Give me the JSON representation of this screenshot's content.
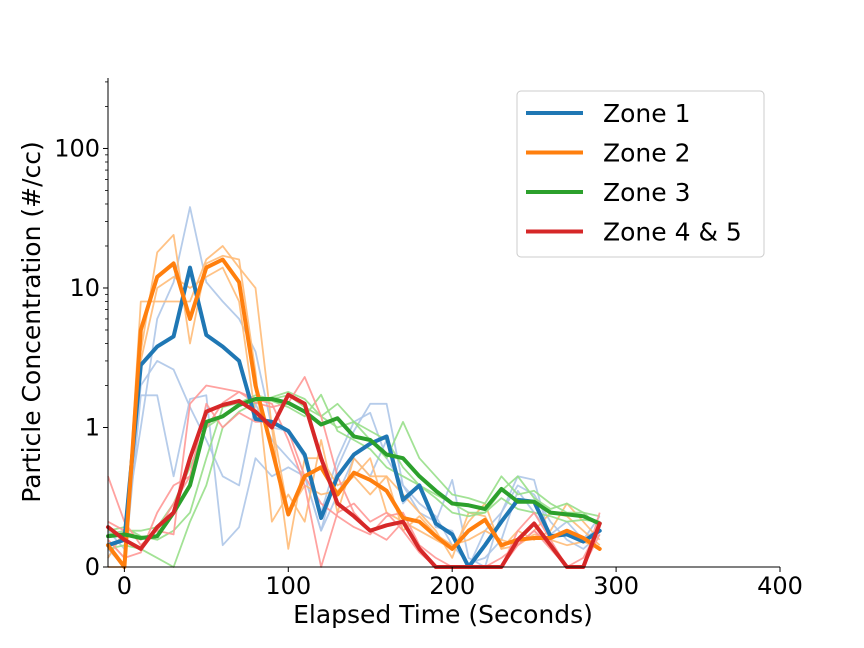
{
  "chart_data": {
    "type": "line",
    "title": "",
    "xlabel": "Elapsed Time (Seconds)",
    "ylabel": "Particle Concentration (#/cc)",
    "xlim": [
      -10,
      400
    ],
    "x_ticks": [
      0,
      100,
      200,
      300,
      400
    ],
    "y_scale": "symlog",
    "y_ticks": [
      0,
      1,
      10,
      100
    ],
    "y_tick_labels": [
      "0",
      "1",
      "10",
      "100"
    ],
    "ylim": [
      0,
      320
    ],
    "grid": false,
    "legend_position": "top-right",
    "series": [
      {
        "name": "Zone 1",
        "color": "#1f77b4",
        "light_color": "#aec7e8",
        "x": [
          -10,
          0,
          10,
          20,
          30,
          40,
          50,
          60,
          70,
          80,
          90,
          100,
          110,
          120,
          130,
          140,
          150,
          160,
          170,
          180,
          190,
          200,
          210,
          220,
          230,
          240,
          250,
          260,
          270,
          280,
          290
        ],
        "y": [
          0.12,
          0.15,
          2.8,
          3.8,
          4.5,
          14,
          4.6,
          3.8,
          3.0,
          1.15,
          0.8,
          0.75,
          0.62,
          0.27,
          0.5,
          0.62,
          0.68,
          0.72,
          0.37,
          0.45,
          0.24,
          0.18,
          0.0,
          0.12,
          0.25,
          0.37,
          0.36,
          0.17,
          0.18,
          0.14,
          0.2
        ],
        "replicates": [
          [
            0.1,
            0.0,
            1.7,
            1.7,
            0.5,
            1.6,
            1.7,
            0.12,
            0.22,
            0.6,
            0.5,
            0.55,
            0.5,
            0.2,
            0.55,
            0.75,
            0.9,
            0.9,
            0.45,
            0.3,
            0.25,
            0.48,
            0.05,
            0.0,
            0.3,
            0.5,
            0.48,
            0.15,
            0.2,
            0.15,
            0.22
          ],
          [
            0.05,
            0.2,
            1.0,
            6.0,
            11.0,
            38,
            11.0,
            8.0,
            6.0,
            3.5,
            1.0,
            0.75,
            0.6,
            0.3,
            0.6,
            0.8,
            0.85,
            0.6,
            0.45,
            0.35,
            0.28,
            0.12,
            0.02,
            0.05,
            0.15,
            0.42,
            0.3,
            0.18,
            0.25,
            0.15,
            0.28
          ],
          [
            0.2,
            0.1,
            2.0,
            3.0,
            2.6,
            1.4,
            0.7,
            0.5,
            0.45,
            0.9,
            0.7,
            0.6,
            0.5,
            0.2,
            0.4,
            0.6,
            0.5,
            0.7,
            0.35,
            0.45,
            0.22,
            0.2,
            0.0,
            0.2,
            0.3,
            0.45,
            0.4,
            0.25,
            0.15,
            0.1,
            0.18
          ]
        ]
      },
      {
        "name": "Zone 2",
        "color": "#ff7f0e",
        "light_color": "#ffbb78",
        "x": [
          -10,
          0,
          10,
          20,
          30,
          40,
          50,
          60,
          70,
          80,
          90,
          100,
          110,
          120,
          130,
          140,
          150,
          160,
          170,
          180,
          190,
          200,
          210,
          220,
          230,
          240,
          250,
          260,
          270,
          280,
          290
        ],
        "y": [
          0.12,
          0.0,
          5.0,
          12.0,
          15.0,
          6.0,
          14.0,
          16.0,
          11.0,
          2.0,
          0.65,
          0.29,
          0.5,
          0.55,
          0.4,
          0.52,
          0.48,
          0.42,
          0.27,
          0.25,
          0.17,
          0.1,
          0.2,
          0.26,
          0.12,
          0.15,
          0.16,
          0.16,
          0.2,
          0.16,
          0.1
        ],
        "replicates": [
          [
            0.0,
            0.0,
            8.0,
            8.0,
            8.0,
            8.0,
            16.0,
            20.0,
            14.0,
            10.0,
            1.0,
            0.1,
            0.6,
            0.6,
            0.45,
            0.5,
            0.6,
            0.3,
            0.25,
            0.2,
            0.15,
            0.1,
            0.25,
            0.35,
            0.1,
            0.12,
            0.2,
            0.3,
            0.28,
            0.2,
            0.12
          ],
          [
            0.05,
            0.2,
            3.5,
            18.0,
            24.0,
            4.0,
            15.0,
            17.0,
            16.0,
            2.5,
            0.25,
            0.4,
            0.25,
            0.7,
            0.3,
            0.6,
            0.5,
            0.5,
            0.4,
            0.3,
            0.2,
            0.05,
            0.3,
            0.28,
            0.1,
            0.2,
            0.15,
            0.2,
            0.35,
            0.25,
            0.15
          ],
          [
            0.15,
            0.05,
            3.0,
            10.0,
            12.0,
            10.0,
            12.0,
            14.0,
            8.0,
            1.2,
            0.8,
            0.3,
            0.45,
            0.4,
            0.42,
            0.5,
            0.4,
            0.5,
            0.2,
            0.28,
            0.18,
            0.12,
            0.15,
            0.2,
            0.15,
            0.12,
            0.18,
            0.15,
            0.12,
            0.14,
            0.1
          ]
        ]
      },
      {
        "name": "Zone 3",
        "color": "#2ca02c",
        "light_color": "#98df8a",
        "x": [
          -10,
          0,
          10,
          20,
          30,
          40,
          50,
          60,
          70,
          80,
          90,
          100,
          110,
          120,
          130,
          140,
          150,
          160,
          170,
          180,
          190,
          200,
          210,
          220,
          230,
          240,
          250,
          260,
          270,
          280,
          290
        ],
        "y": [
          0.17,
          0.18,
          0.16,
          0.17,
          0.3,
          0.45,
          0.8,
          1.2,
          1.45,
          1.6,
          1.6,
          1.5,
          1.3,
          1.05,
          0.82,
          0.72,
          0.7,
          0.62,
          0.6,
          0.5,
          0.42,
          0.35,
          0.34,
          0.32,
          0.43,
          0.36,
          0.36,
          0.3,
          0.29,
          0.28,
          0.24
        ],
        "replicates": [
          [
            0.2,
            0.22,
            0.17,
            0.15,
            0.2,
            0.3,
            0.6,
            1.4,
            1.5,
            1.7,
            1.6,
            1.7,
            1.4,
            1.2,
            0.9,
            0.8,
            0.7,
            0.6,
            0.8,
            0.6,
            0.5,
            0.4,
            0.38,
            0.35,
            0.5,
            0.4,
            0.42,
            0.35,
            0.3,
            0.3,
            0.28
          ],
          [
            0.1,
            0.12,
            0.1,
            0.05,
            0.0,
            0.25,
            0.45,
            1.0,
            1.3,
            1.5,
            1.65,
            1.8,
            1.6,
            1.2,
            1.0,
            0.8,
            0.75,
            0.7,
            0.55,
            0.45,
            0.38,
            0.3,
            0.28,
            0.3,
            0.42,
            0.5,
            0.38,
            0.32,
            0.35,
            0.3,
            0.22
          ],
          [
            0.18,
            0.2,
            0.2,
            0.22,
            0.35,
            0.55,
            1.0,
            1.2,
            1.5,
            1.55,
            1.55,
            1.4,
            1.2,
            0.95,
            0.75,
            0.7,
            0.65,
            0.55,
            0.5,
            0.45,
            0.4,
            0.35,
            0.3,
            0.3,
            0.38,
            0.32,
            0.3,
            0.28,
            0.25,
            0.26,
            0.25
          ]
        ]
      },
      {
        "name": "Zone 4 & 5",
        "color": "#d62728",
        "light_color": "#ff9896",
        "x": [
          -10,
          0,
          10,
          20,
          30,
          40,
          50,
          60,
          70,
          80,
          90,
          100,
          110,
          120,
          130,
          140,
          150,
          160,
          170,
          180,
          190,
          200,
          210,
          220,
          230,
          240,
          250,
          260,
          270,
          280,
          290
        ],
        "y": [
          0.22,
          0.15,
          0.1,
          0.22,
          0.3,
          0.6,
          1.3,
          1.45,
          1.55,
          1.3,
          1.0,
          0.95,
          0.9,
          0.6,
          0.35,
          0.28,
          0.2,
          0.23,
          0.25,
          0.1,
          0.0,
          0.0,
          0.0,
          0.0,
          0.0,
          0.15,
          0.24,
          0.12,
          0.0,
          0.0,
          0.24
        ],
        "replicates": [
          [
            0.5,
            0.25,
            0.12,
            0.2,
            0.18,
            0.9,
            2.0,
            1.9,
            1.8,
            1.5,
            1.4,
            1.5,
            2.3,
            1.2,
            0.5,
            0.3,
            0.2,
            0.15,
            0.25,
            0.1,
            0.0,
            0.0,
            0.0,
            0.0,
            0.0,
            0.2,
            0.3,
            0.15,
            0.0,
            0.0,
            0.3
          ],
          [
            0.15,
            0.05,
            0.08,
            0.3,
            0.45,
            0.5,
            0.9,
            1.0,
            0.85,
            0.8,
            0.8,
            0.75,
            0.5,
            0.35,
            0.28,
            0.22,
            0.18,
            0.28,
            0.3,
            0.12,
            0.05,
            0.0,
            0.0,
            0.0,
            0.05,
            0.12,
            0.2,
            0.1,
            0.0,
            0.0,
            0.18
          ],
          [
            0.25,
            0.2,
            0.15,
            0.2,
            0.35,
            0.5,
            1.0,
            1.5,
            1.8,
            1.6,
            0.9,
            0.7,
            0.45,
            0.0,
            0.3,
            0.35,
            0.25,
            0.3,
            0.2,
            0.08,
            0.0,
            0.0,
            0.0,
            0.0,
            0.0,
            0.12,
            0.2,
            0.12,
            0.0,
            0.05,
            0.22
          ]
        ]
      }
    ]
  }
}
